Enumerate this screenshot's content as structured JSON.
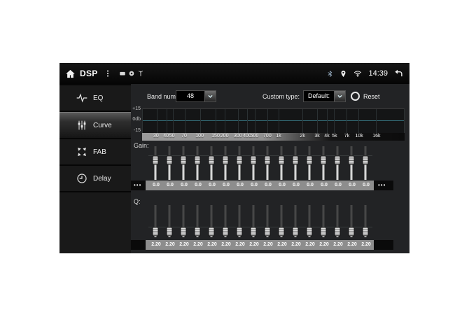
{
  "topbar": {
    "title": "DSP",
    "time": "14:39",
    "left_status_icons": [
      "sd-card-icon",
      "gps-dot-icon",
      "antenna-icon"
    ],
    "right_status_icons": [
      "bluetooth-icon",
      "location-pin-icon",
      "wifi-icon"
    ]
  },
  "sidebar": {
    "items": [
      {
        "id": "eq",
        "label": "EQ",
        "icon": "eq-wave-icon",
        "selected": false
      },
      {
        "id": "curve",
        "label": "Curve",
        "icon": "curve-sliders-icon",
        "selected": true
      },
      {
        "id": "fab",
        "label": "FAB",
        "icon": "fab-arrows-icon",
        "selected": false
      },
      {
        "id": "delay",
        "label": "Delay",
        "icon": "delay-clock-icon",
        "selected": false
      }
    ]
  },
  "controls": {
    "band_num_label": "Band num:",
    "band_num_value": "48",
    "custom_type_label": "Custom type:",
    "custom_type_value": "Default:",
    "reset_label": "Reset"
  },
  "graph": {
    "y_axis_labels": [
      "+15",
      "0db",
      "-15"
    ],
    "curve_db": 0,
    "freq_labels": [
      {
        "text": "30",
        "pct": 5.3
      },
      {
        "text": "40",
        "pct": 9.1
      },
      {
        "text": "50",
        "pct": 11.4
      },
      {
        "text": "70",
        "pct": 16.0
      },
      {
        "text": "100",
        "pct": 21.9
      },
      {
        "text": "150",
        "pct": 28.0
      },
      {
        "text": "200",
        "pct": 31.4
      },
      {
        "text": "300",
        "pct": 36.5
      },
      {
        "text": "400",
        "pct": 40.0
      },
      {
        "text": "500",
        "pct": 42.8
      },
      {
        "text": "700",
        "pct": 47.7
      },
      {
        "text": "1k",
        "pct": 52.0
      },
      {
        "text": "2k",
        "pct": 61.1
      },
      {
        "text": "3k",
        "pct": 66.7
      },
      {
        "text": "4k",
        "pct": 70.4
      },
      {
        "text": "5k",
        "pct": 73.3
      },
      {
        "text": "7k",
        "pct": 78.0
      },
      {
        "text": "10k",
        "pct": 82.7
      },
      {
        "text": "16k",
        "pct": 89.3
      }
    ]
  },
  "gain": {
    "label": "Gain:",
    "overflow_left": "•••",
    "overflow_right": "•••",
    "slider_pct": 42,
    "values": [
      "0.0",
      "0.0",
      "0.0",
      "0.0",
      "0.0",
      "0.0",
      "0.0",
      "0.0",
      "0.0",
      "0.0",
      "0.0",
      "0.0",
      "0.0",
      "0.0",
      "0.0",
      "0.0"
    ]
  },
  "q": {
    "label": "Q:",
    "slider_pct": 81,
    "values": [
      "2.20",
      "2.20",
      "2.20",
      "2.20",
      "2.20",
      "2.20",
      "2.20",
      "2.20",
      "2.20",
      "2.20",
      "2.20",
      "2.20",
      "2.20",
      "2.20",
      "2.20",
      "2.20"
    ]
  },
  "colors": {
    "zero_line": "#35707c",
    "value_strip": "#8d8d8d",
    "selected_item_highlight": "#585858"
  }
}
